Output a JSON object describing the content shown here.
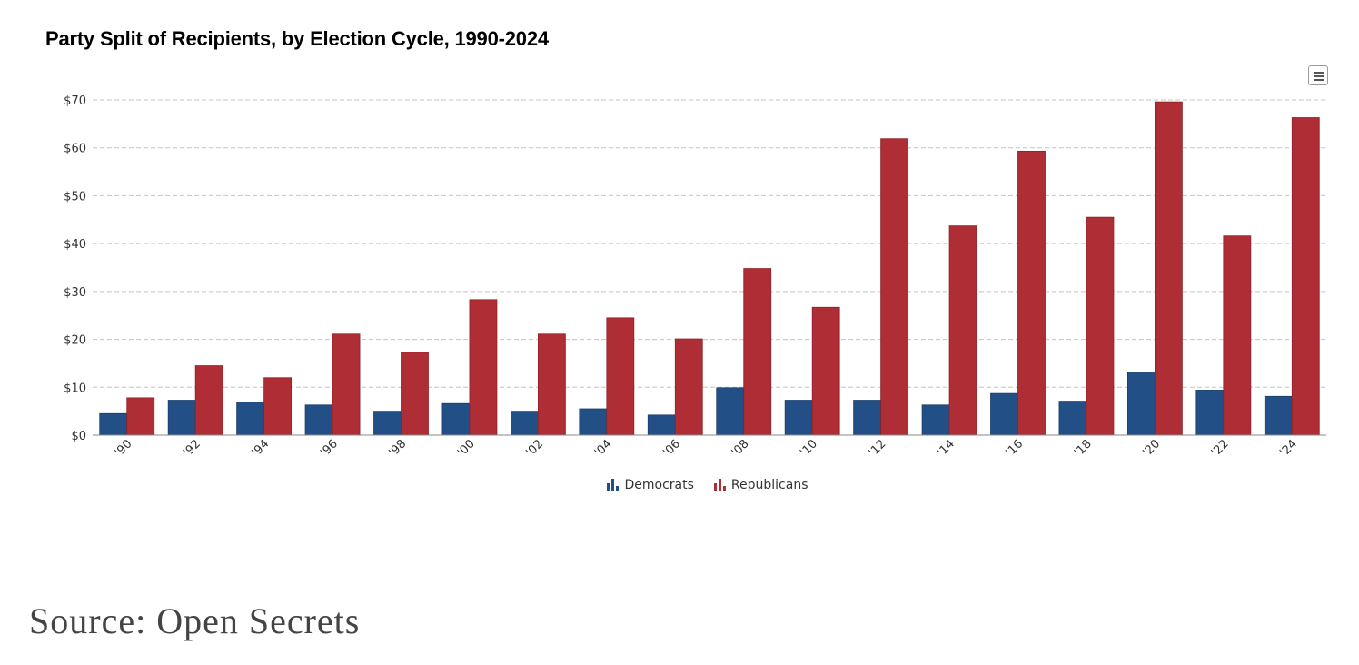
{
  "header": {
    "title": "Party Split of Recipients, by Election Cycle, 1990-2024"
  },
  "menu": {
    "icon": "hamburger-menu-icon"
  },
  "chart_data": {
    "type": "bar",
    "title": "Party Split of Recipients, by Election Cycle, 1990-2024",
    "xlabel": "",
    "ylabel": "",
    "ylim": [
      0,
      70
    ],
    "yticks": [
      "$0",
      "$10",
      "$20",
      "$30",
      "$40",
      "$50",
      "$60",
      "$70"
    ],
    "ytick_values": [
      0,
      10,
      20,
      30,
      40,
      50,
      60,
      70
    ],
    "grid": true,
    "legend_position": "bottom-center",
    "categories": [
      "'90",
      "'92",
      "'94",
      "'96",
      "'98",
      "'00",
      "'02",
      "'04",
      "'06",
      "'08",
      "'10",
      "'12",
      "'14",
      "'16",
      "'18",
      "'20",
      "'22",
      "'24"
    ],
    "series": [
      {
        "name": "Democrats",
        "color": "#234f87",
        "values": [
          4.5,
          7.3,
          6.9,
          6.3,
          5.0,
          6.6,
          5.0,
          5.5,
          4.2,
          9.9,
          7.3,
          7.3,
          6.3,
          8.7,
          7.1,
          13.2,
          9.4,
          8.1
        ]
      },
      {
        "name": "Republicans",
        "color": "#af2d34",
        "values": [
          7.8,
          14.5,
          12.0,
          21.1,
          17.3,
          28.3,
          21.1,
          24.5,
          20.1,
          34.8,
          26.7,
          61.9,
          43.7,
          59.3,
          45.5,
          69.6,
          41.6,
          66.3
        ]
      }
    ]
  },
  "legend": {
    "items": [
      {
        "label": "Democrats",
        "color": "#234f87"
      },
      {
        "label": "Republicans",
        "color": "#af2d34"
      }
    ]
  },
  "footer": {
    "source": "Source: Open Secrets"
  }
}
